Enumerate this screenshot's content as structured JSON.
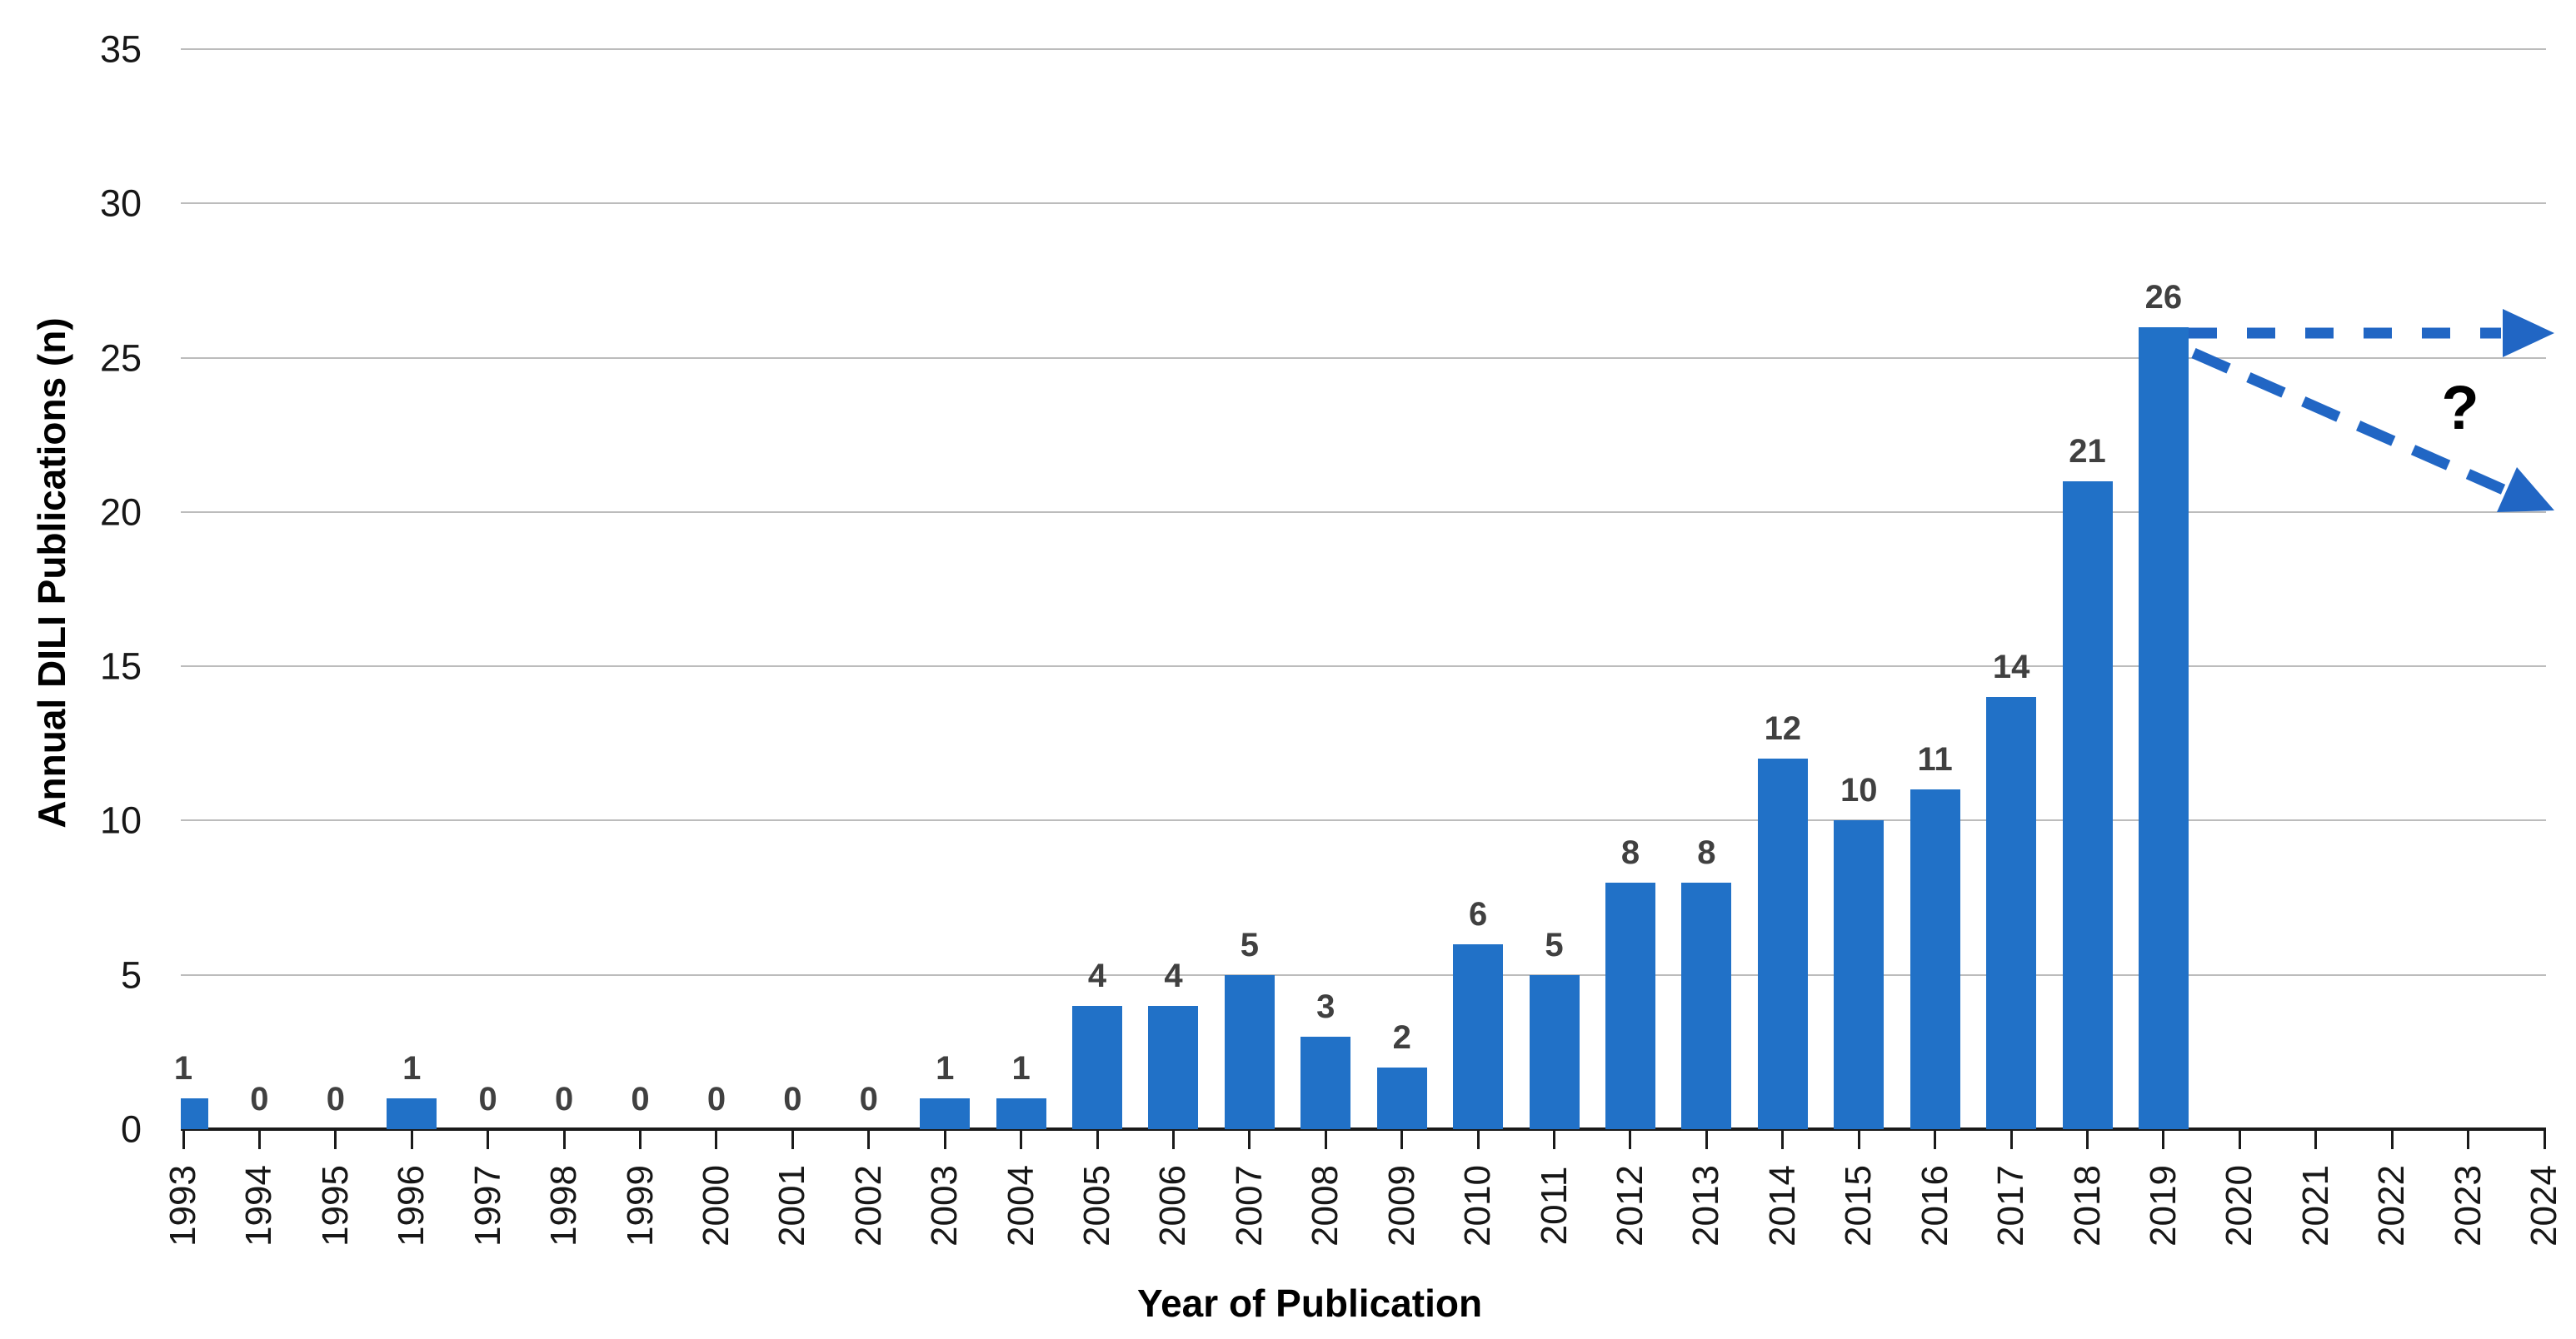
{
  "chart_data": {
    "type": "bar",
    "title": "",
    "xlabel": "Year of Publication",
    "ylabel": "Annual DILI Publications (n)",
    "categories": [
      "1993",
      "1994",
      "1995",
      "1996",
      "1997",
      "1998",
      "1999",
      "2000",
      "2001",
      "2002",
      "2003",
      "2004",
      "2005",
      "2006",
      "2007",
      "2008",
      "2009",
      "2010",
      "2011",
      "2012",
      "2013",
      "2014",
      "2015",
      "2016",
      "2017",
      "2018",
      "2019",
      "2020",
      "2021",
      "2022",
      "2023",
      "2024"
    ],
    "values": [
      1,
      0,
      0,
      1,
      0,
      0,
      0,
      0,
      0,
      0,
      1,
      1,
      4,
      4,
      5,
      3,
      2,
      6,
      5,
      8,
      8,
      12,
      10,
      11,
      14,
      21,
      26,
      null,
      null,
      null,
      null,
      null
    ],
    "bar_labels": [
      "1",
      "0",
      "0",
      "1",
      "0",
      "0",
      "0",
      "0",
      "0",
      "0",
      "1",
      "1",
      "4",
      "4",
      "5",
      "3",
      "2",
      "6",
      "5",
      "8",
      "8",
      "12",
      "10",
      "11",
      "14",
      "21",
      "26",
      "",
      "",
      "",
      "",
      ""
    ],
    "ylim": [
      0,
      35
    ],
    "yticks": [
      "0",
      "5",
      "10",
      "15",
      "20",
      "25",
      "30",
      "35"
    ],
    "grid": true,
    "legend_position": "none",
    "annotations": {
      "question_mark": "?",
      "arrows": [
        {
          "name": "flat-projection-arrow",
          "style": "dashed",
          "from_year": "2019",
          "from_value": 26,
          "direction": "horizontal-right"
        },
        {
          "name": "declining-projection-arrow",
          "style": "dashed",
          "from_year": "2019",
          "from_value": 26,
          "direction": "down-right"
        }
      ]
    },
    "colors": {
      "bar": "#2171C7",
      "arrow": "#2166C4",
      "gridline": "#BCBCBC",
      "axis": "#1A1A1A",
      "value_label": "#404040",
      "tick_label": "#171717",
      "question_mark": "#000000"
    }
  }
}
